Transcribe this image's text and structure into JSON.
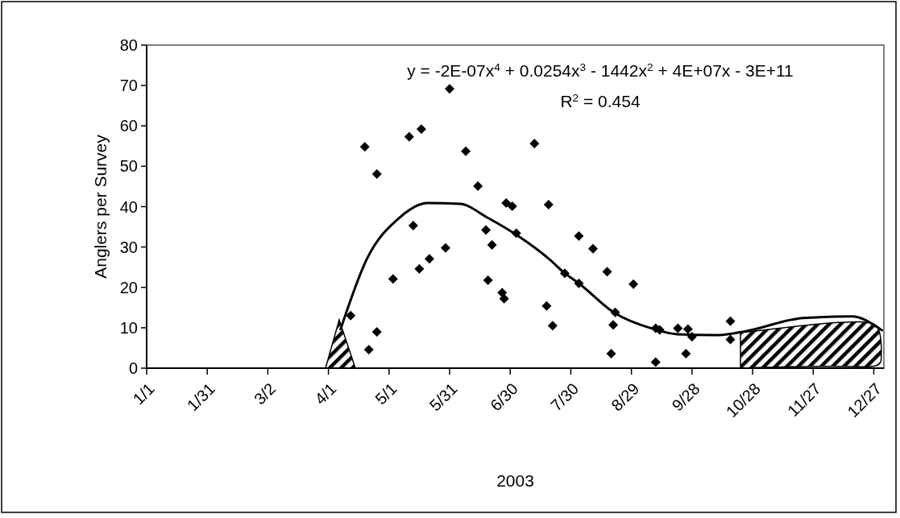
{
  "chart_data": {
    "type": "scatter",
    "xlabel": "2003",
    "ylabel": "Anglers per Survey",
    "annotations": [
      "y = -2E-07x$^{4}$ + 0.0254x$^{3}$ - 1442x$^{2}$ + 4E+07x - 3E+11",
      "R$^{2}$ = 0.454"
    ],
    "xlim": [
      "2003-01-01",
      "2004-01-01"
    ],
    "xticks": [
      {
        "value": "2003-01-01",
        "label": "1/1"
      },
      {
        "value": "2003-01-31",
        "label": "1/31"
      },
      {
        "value": "2003-03-02",
        "label": "3/2"
      },
      {
        "value": "2003-04-01",
        "label": "4/1"
      },
      {
        "value": "2003-05-01",
        "label": "5/1"
      },
      {
        "value": "2003-05-31",
        "label": "5/31"
      },
      {
        "value": "2003-06-30",
        "label": "6/30"
      },
      {
        "value": "2003-07-30",
        "label": "7/30"
      },
      {
        "value": "2003-08-29",
        "label": "8/29"
      },
      {
        "value": "2003-09-28",
        "label": "9/28"
      },
      {
        "value": "2003-10-28",
        "label": "10/28"
      },
      {
        "value": "2003-11-27",
        "label": "11/27"
      },
      {
        "value": "2003-12-27",
        "label": "12/27"
      }
    ],
    "bands": [
      {
        "axis": "x",
        "from": "2003-10-22",
        "to": "2003-12-31"
      }
    ],
    "ylim": [
      0,
      80
    ],
    "yticks": [
      0,
      10,
      20,
      30,
      40,
      50,
      60,
      70,
      80
    ],
    "series": [
      {
        "type": "scatter",
        "color": "#000000",
        "marker": "diamond",
        "x": [
          "2003-04-12",
          "2003-04-25",
          "2003-04-21",
          "2003-05-03",
          "2003-05-16",
          "2003-05-21",
          "2003-06-19",
          "2003-06-26",
          "2003-06-27",
          "2003-07-18",
          "2003-07-21",
          "2003-04-19",
          "2003-04-25",
          "2003-05-31",
          "2003-05-11",
          "2003-05-17",
          "2003-06-08",
          "2003-07-12",
          "2003-06-14",
          "2003-06-28",
          "2003-07-01",
          "2003-07-19",
          "2003-05-13",
          "2003-06-18",
          "2003-07-03",
          "2003-06-21",
          "2003-05-29",
          "2003-08-03",
          "2003-08-10",
          "2003-07-27",
          "2003-08-03",
          "2003-08-17",
          "2003-08-30",
          "2003-08-21",
          "2003-08-20",
          "2003-08-19",
          "2003-09-10",
          "2003-09-12",
          "2003-09-10",
          "2003-09-21",
          "2003-09-26",
          "2003-09-28",
          "2003-09-25",
          "2003-10-17",
          "2003-10-17"
        ],
        "values": [
          13.0,
          9.0,
          4.6,
          22.1,
          24.6,
          27.1,
          21.8,
          18.7,
          17.2,
          15.4,
          10.5,
          54.8,
          48.1,
          69.2,
          57.3,
          59.2,
          53.7,
          55.6,
          45.1,
          40.9,
          40.1,
          40.5,
          35.3,
          34.2,
          33.4,
          30.5,
          29.8,
          32.7,
          29.6,
          23.5,
          21.0,
          23.9,
          20.8,
          13.8,
          10.7,
          3.6,
          9.9,
          9.5,
          1.5,
          9.9,
          9.7,
          7.8,
          3.6,
          11.6,
          7.1
        ]
      },
      {
        "type": "line",
        "color": "#000000",
        "marker": "none",
        "line_style": "solid",
        "x": [
          "2003-04-07",
          "2003-04-20",
          "2003-05-06",
          "2003-05-20",
          "2003-06-05",
          "2003-06-19",
          "2003-07-04",
          "2003-07-20",
          "2003-07-27",
          "2003-08-03",
          "2003-08-20",
          "2003-09-09",
          "2003-09-21",
          "2003-10-11",
          "2003-10-25",
          "2003-11-22",
          "2003-12-16",
          "2003-12-31"
        ],
        "values": [
          9.6,
          27.0,
          37.2,
          40.9,
          40.7,
          37.2,
          32.7,
          26.7,
          23.5,
          21.0,
          13.9,
          9.7,
          8.4,
          8.2,
          9.2,
          12.4,
          12.8,
          9.4
        ]
      }
    ]
  }
}
